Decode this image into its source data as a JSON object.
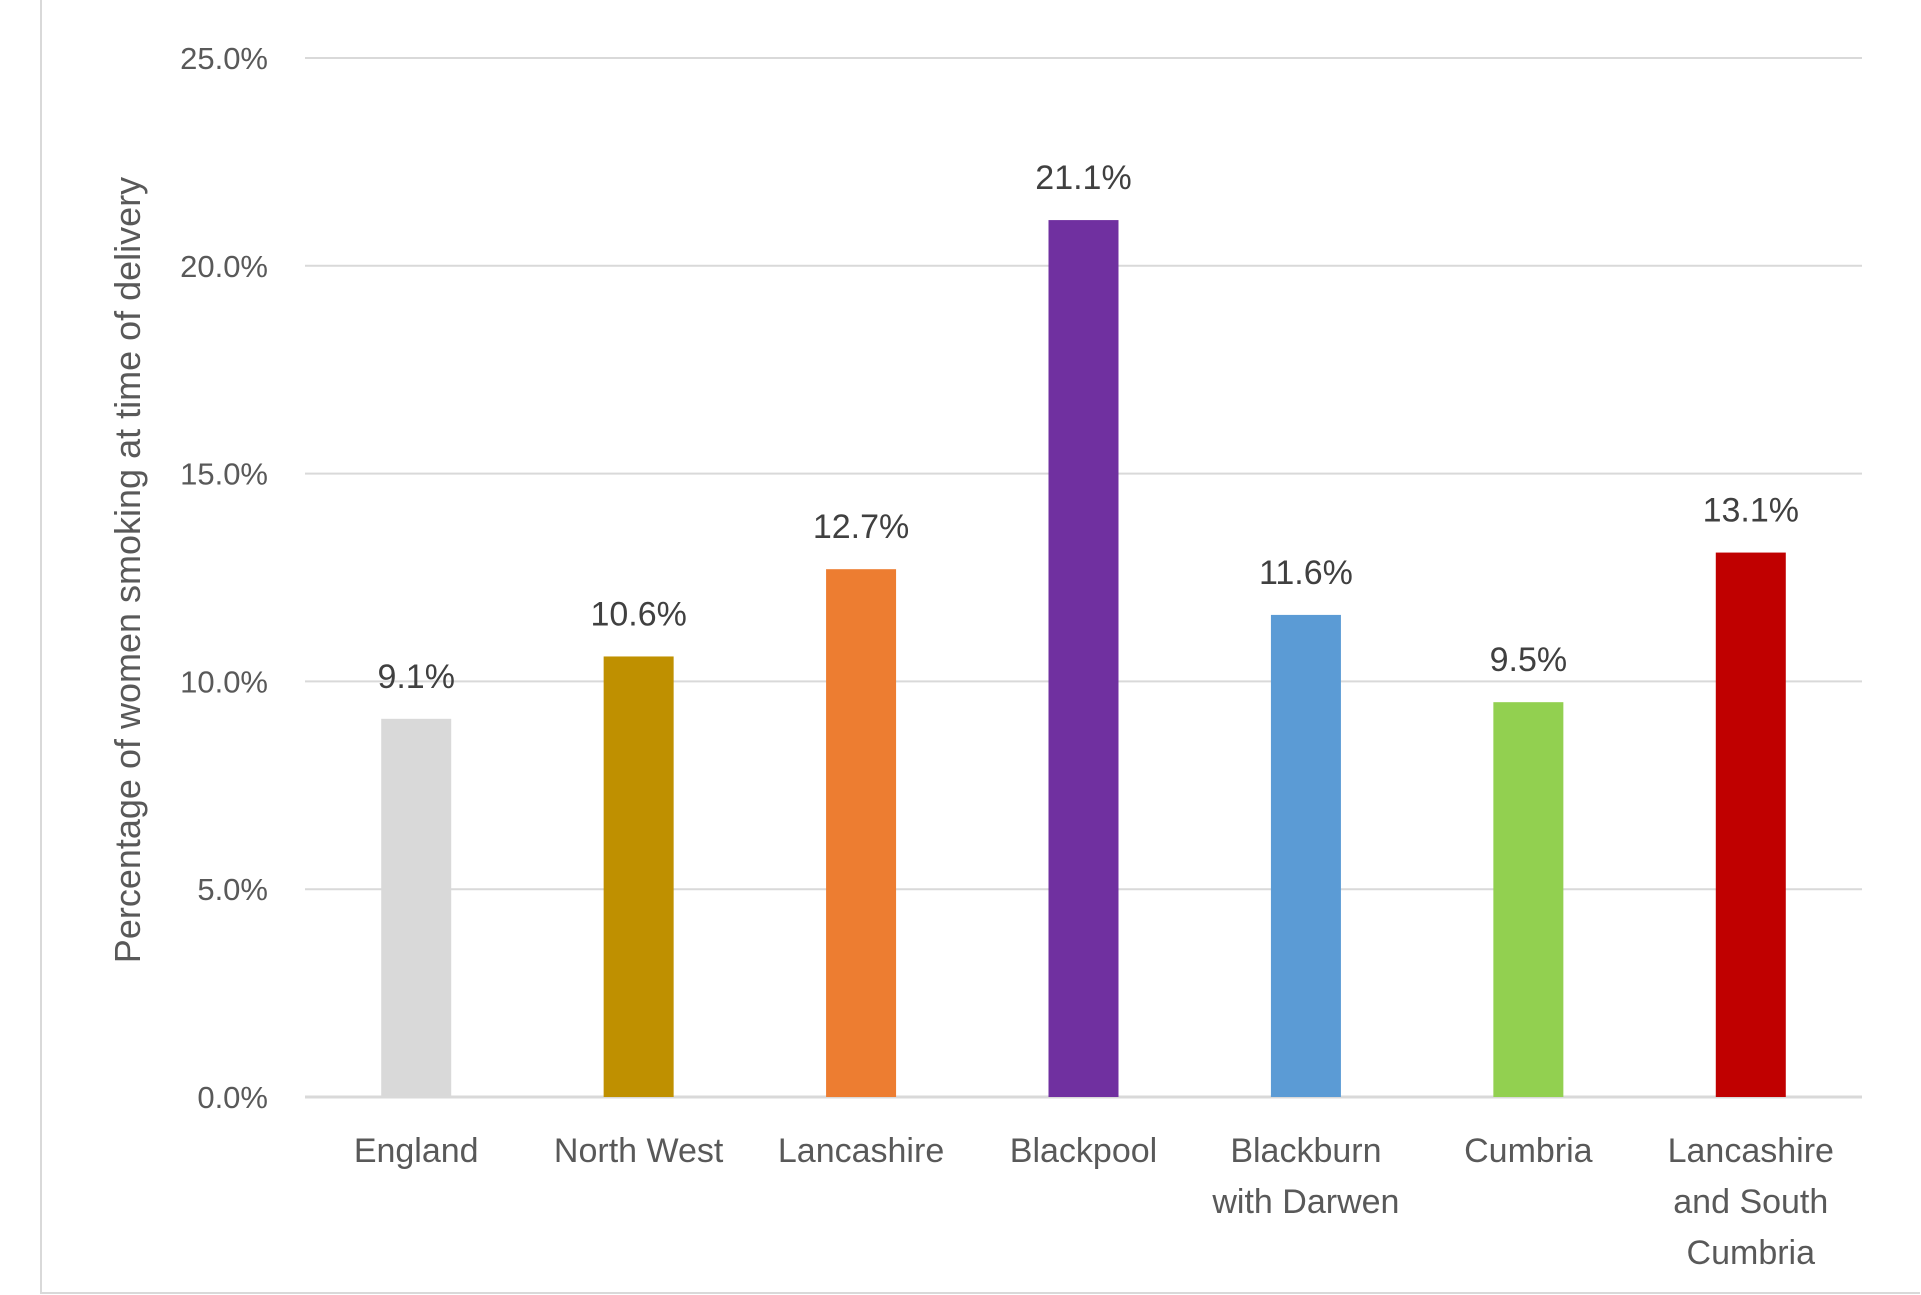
{
  "chart_data": {
    "type": "bar",
    "ylabel": "Percentage of women smoking at time of delivery",
    "ylim": [
      0,
      25
    ],
    "yticks": [
      "0.0%",
      "5.0%",
      "10.0%",
      "15.0%",
      "20.0%",
      "25.0%"
    ],
    "grid": true,
    "categories": [
      [
        "England"
      ],
      [
        "North West"
      ],
      [
        "Lancashire"
      ],
      [
        "Blackpool"
      ],
      [
        "Blackburn",
        "with Darwen"
      ],
      [
        "Cumbria"
      ],
      [
        "Lancashire",
        "and South",
        "Cumbria"
      ]
    ],
    "values": [
      9.1,
      10.6,
      12.7,
      21.1,
      11.6,
      9.5,
      13.1
    ],
    "data_labels": [
      "9.1%",
      "10.6%",
      "12.7%",
      "21.1%",
      "11.6%",
      "9.5%",
      "13.1%"
    ],
    "colors": [
      "#d9d9d9",
      "#bf9000",
      "#ed7d31",
      "#7030a0",
      "#5b9bd5",
      "#92d050",
      "#c00000"
    ]
  }
}
